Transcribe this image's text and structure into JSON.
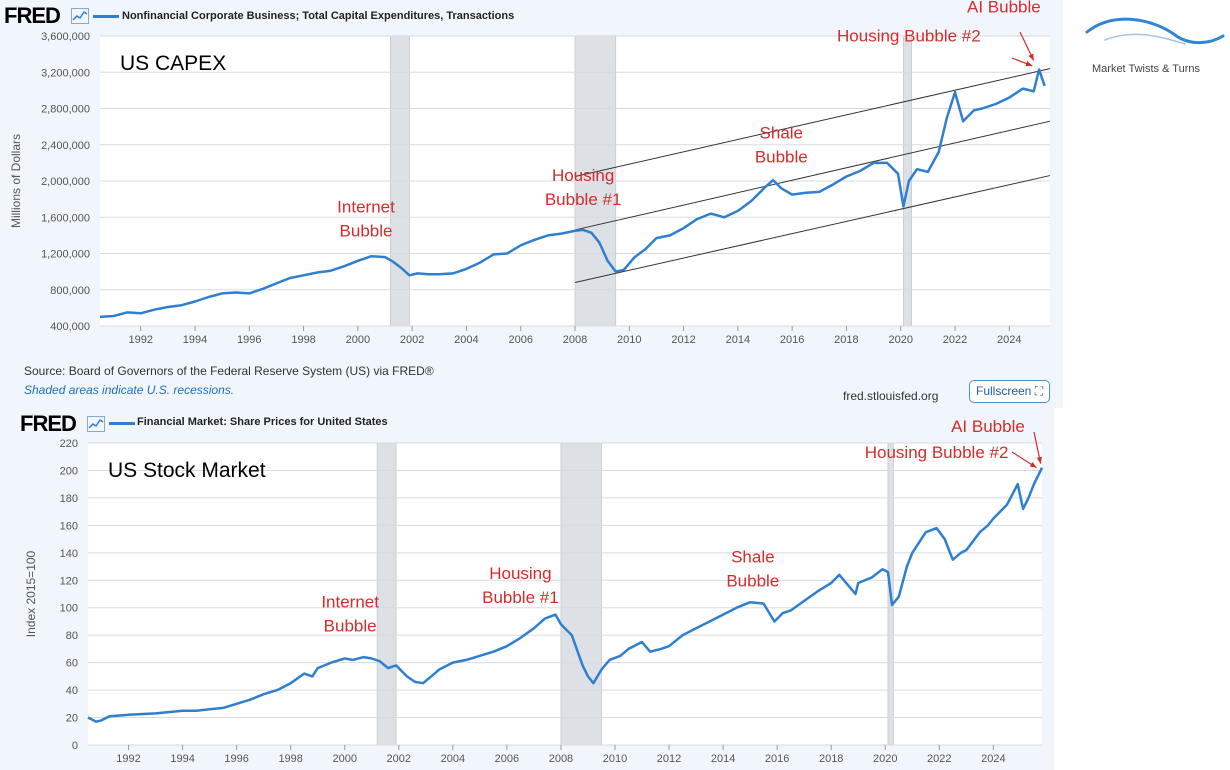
{
  "brand": {
    "name": "Market Twists & Turns"
  },
  "charts": [
    {
      "logo": "FRED",
      "series_title": "Nonfinancial Corporate Business; Total Capital Expenditures, Transactions",
      "panel_label": "US CAPEX",
      "source": "Source: Board of Governors of the Federal Reserve System (US) via FRED®",
      "shaded_note": "Shaded areas indicate U.S. recessions.",
      "credit": "fred.stlouisfed.org",
      "fullscreen_label": "Fullscreen"
    },
    {
      "logo": "FRED",
      "series_title": "Financial Market: Share Prices for United States",
      "panel_label": "US Stock Market"
    }
  ],
  "chart_data": [
    {
      "type": "line",
      "title": "Nonfinancial Corporate Business; Total Capital Expenditures, Transactions",
      "ylabel": "Millions of Dollars",
      "xlabel": "",
      "xlim": [
        1990.5,
        2025.5
      ],
      "ylim": [
        400000,
        3600000
      ],
      "yticks": [
        400000,
        800000,
        1200000,
        1600000,
        2000000,
        2400000,
        2800000,
        3200000,
        3600000
      ],
      "ytick_labels": [
        "400,000",
        "800,000",
        "1,200,000",
        "1,600,000",
        "2,000,000",
        "2,400,000",
        "2,800,000",
        "3,200,000",
        "3,600,000"
      ],
      "xticks": [
        1992,
        1994,
        1996,
        1998,
        2000,
        2002,
        2004,
        2006,
        2008,
        2010,
        2012,
        2014,
        2016,
        2018,
        2020,
        2022,
        2024
      ],
      "xtick_labels": [
        "1992",
        "1994",
        "1996",
        "1998",
        "2000",
        "2002",
        "2004",
        "2006",
        "2008",
        "2010",
        "2012",
        "2014",
        "2016",
        "2018",
        "2020",
        "2022",
        "2024"
      ],
      "grid": true,
      "recessions": [
        [
          2001.2,
          2001.9
        ],
        [
          2008.0,
          2009.5
        ],
        [
          2020.1,
          2020.4
        ]
      ],
      "series": [
        {
          "color": "#2f7fd1",
          "x": [
            1990.5,
            1991.0,
            1991.5,
            1992.0,
            1992.5,
            1993.0,
            1993.5,
            1994.0,
            1994.5,
            1995.0,
            1995.5,
            1996.0,
            1996.5,
            1997.0,
            1997.5,
            1998.0,
            1998.5,
            1999.0,
            1999.5,
            2000.0,
            2000.5,
            2001.0,
            2001.3,
            2001.6,
            2001.9,
            2002.2,
            2002.6,
            2003.0,
            2003.5,
            2004.0,
            2004.5,
            2005.0,
            2005.5,
            2006.0,
            2006.5,
            2007.0,
            2007.5,
            2008.0,
            2008.3,
            2008.6,
            2008.9,
            2009.2,
            2009.5,
            2009.8,
            2010.2,
            2010.6,
            2011.0,
            2011.5,
            2012.0,
            2012.5,
            2013.0,
            2013.5,
            2014.0,
            2014.5,
            2015.0,
            2015.3,
            2015.6,
            2016.0,
            2016.5,
            2017.0,
            2017.5,
            2018.0,
            2018.5,
            2019.0,
            2019.5,
            2019.9,
            2020.1,
            2020.3,
            2020.6,
            2021.0,
            2021.4,
            2021.7,
            2022.0,
            2022.3,
            2022.7,
            2023.0,
            2023.5,
            2024.0,
            2024.5,
            2024.9,
            2025.1,
            2025.3
          ],
          "y": [
            500000,
            510000,
            550000,
            540000,
            580000,
            610000,
            630000,
            670000,
            720000,
            760000,
            770000,
            760000,
            810000,
            870000,
            930000,
            960000,
            990000,
            1010000,
            1060000,
            1120000,
            1170000,
            1160000,
            1110000,
            1040000,
            960000,
            980000,
            970000,
            970000,
            980000,
            1030000,
            1100000,
            1190000,
            1200000,
            1290000,
            1350000,
            1400000,
            1420000,
            1450000,
            1460000,
            1430000,
            1320000,
            1120000,
            1000000,
            1020000,
            1160000,
            1250000,
            1370000,
            1400000,
            1480000,
            1580000,
            1640000,
            1600000,
            1670000,
            1780000,
            1930000,
            2010000,
            1920000,
            1850000,
            1870000,
            1880000,
            1960000,
            2050000,
            2110000,
            2200000,
            2200000,
            2080000,
            1720000,
            2000000,
            2130000,
            2100000,
            2320000,
            2700000,
            2980000,
            2660000,
            2780000,
            2800000,
            2850000,
            2920000,
            3020000,
            2990000,
            3230000,
            3050000
          ]
        }
      ],
      "trend_channel": {
        "upper": [
          [
            2008.0,
            2050000
          ],
          [
            2025.5,
            3240000
          ]
        ],
        "middle": [
          [
            2008.0,
            1460000
          ],
          [
            2025.5,
            2660000
          ]
        ],
        "lower": [
          [
            2008.0,
            880000
          ],
          [
            2025.5,
            2060000
          ]
        ]
      },
      "annotations": [
        {
          "text": [
            "Internet",
            "Bubble"
          ],
          "x": 2000.3,
          "y": 1650000
        },
        {
          "text": [
            "Housing",
            "Bubble #1"
          ],
          "x": 2008.3,
          "y": 2000000
        },
        {
          "text": [
            "Shale",
            "Bubble"
          ],
          "x": 2015.6,
          "y": 2470000
        },
        {
          "text": [
            "Housing Bubble #2"
          ],
          "x": 2020.3,
          "y": 3540000
        },
        {
          "text": [
            "AI Bubble"
          ],
          "x": 2023.8,
          "y": 3860000
        }
      ]
    },
    {
      "type": "line",
      "title": "Financial Market: Share Prices for United States",
      "ylabel": "Index 2015=100",
      "xlabel": "",
      "xlim": [
        1990.5,
        2025.8
      ],
      "ylim": [
        0,
        220
      ],
      "yticks": [
        0,
        20,
        40,
        60,
        80,
        100,
        120,
        140,
        160,
        180,
        200,
        220
      ],
      "ytick_labels": [
        "0",
        "20",
        "40",
        "60",
        "80",
        "100",
        "120",
        "140",
        "160",
        "180",
        "200",
        "220"
      ],
      "xticks": [
        1992,
        1994,
        1996,
        1998,
        2000,
        2002,
        2004,
        2006,
        2008,
        2010,
        2012,
        2014,
        2016,
        2018,
        2020,
        2022,
        2024
      ],
      "xtick_labels": [
        "1992",
        "1994",
        "1996",
        "1998",
        "2000",
        "2002",
        "2004",
        "2006",
        "2008",
        "2010",
        "2012",
        "2014",
        "2016",
        "2018",
        "2020",
        "2022",
        "2024"
      ],
      "grid": true,
      "recessions": [
        [
          2001.2,
          2001.9
        ],
        [
          2008.0,
          2009.5
        ],
        [
          2020.1,
          2020.3
        ]
      ],
      "series": [
        {
          "color": "#2f7fd1",
          "x": [
            1990.5,
            1990.8,
            1991.0,
            1991.3,
            1992.0,
            1993.0,
            1994.0,
            1994.5,
            1995.0,
            1995.5,
            1996.0,
            1996.5,
            1997.0,
            1997.5,
            1998.0,
            1998.5,
            1998.8,
            1999.0,
            1999.5,
            2000.0,
            2000.3,
            2000.7,
            2001.0,
            2001.3,
            2001.6,
            2001.9,
            2002.3,
            2002.6,
            2002.9,
            2003.2,
            2003.5,
            2004.0,
            2004.5,
            2005.0,
            2005.5,
            2006.0,
            2006.5,
            2007.0,
            2007.4,
            2007.8,
            2008.0,
            2008.4,
            2008.8,
            2009.0,
            2009.2,
            2009.5,
            2009.8,
            2010.2,
            2010.5,
            2011.0,
            2011.3,
            2011.7,
            2012.0,
            2012.5,
            2013.0,
            2013.5,
            2014.0,
            2014.5,
            2015.0,
            2015.5,
            2015.9,
            2016.2,
            2016.5,
            2017.0,
            2017.5,
            2018.0,
            2018.3,
            2018.6,
            2018.9,
            2019.0,
            2019.5,
            2019.9,
            2020.1,
            2020.25,
            2020.5,
            2020.8,
            2021.0,
            2021.5,
            2021.9,
            2022.2,
            2022.5,
            2022.8,
            2023.0,
            2023.5,
            2023.8,
            2024.0,
            2024.5,
            2024.9,
            2025.1,
            2025.3,
            2025.5,
            2025.8
          ],
          "y": [
            20,
            17,
            18,
            21,
            22,
            23,
            25,
            25,
            26,
            27,
            30,
            33,
            37,
            40,
            45,
            52,
            50,
            56,
            60,
            63,
            62,
            64,
            63,
            61,
            56,
            58,
            50,
            46,
            45,
            50,
            55,
            60,
            62,
            65,
            68,
            72,
            78,
            85,
            92,
            95,
            88,
            80,
            58,
            50,
            45,
            55,
            62,
            65,
            70,
            75,
            68,
            70,
            72,
            80,
            85,
            90,
            95,
            100,
            104,
            103,
            90,
            96,
            98,
            105,
            112,
            118,
            124,
            117,
            110,
            118,
            122,
            128,
            126,
            102,
            108,
            130,
            140,
            155,
            158,
            150,
            135,
            140,
            142,
            155,
            160,
            165,
            175,
            190,
            172,
            180,
            190,
            202
          ]
        }
      ],
      "annotations": [
        {
          "text": [
            "Internet",
            "Bubble"
          ],
          "x": 2000.2,
          "y": 100
        },
        {
          "text": [
            "Housing",
            "Bubble #1"
          ],
          "x": 2006.5,
          "y": 121
        },
        {
          "text": [
            "Shale",
            "Bubble"
          ],
          "x": 2015.1,
          "y": 133
        },
        {
          "text": [
            "Housing Bubble #2"
          ],
          "x": 2021.9,
          "y": 209
        },
        {
          "text": [
            "AI Bubble"
          ],
          "x": 2023.8,
          "y": 228
        }
      ]
    }
  ]
}
